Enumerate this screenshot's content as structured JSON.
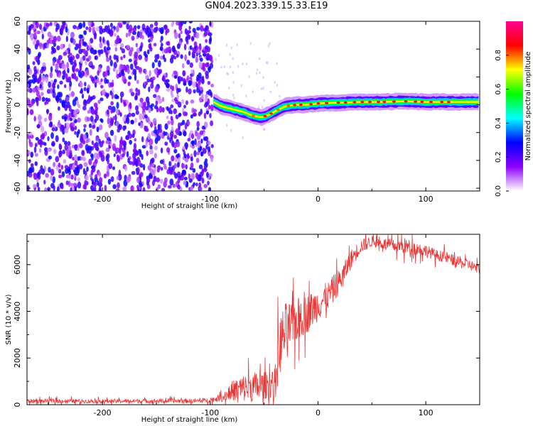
{
  "page_title": "GN04.2023.339.15.33.E19",
  "chart_data": [
    {
      "type": "heatmap",
      "title": "GN04.2023.339.15.33.E19",
      "xlabel": "Height of straight line (km)",
      "ylabel": "Frequency (Hz)",
      "xlim": [
        -270,
        150
      ],
      "ylim": [
        -62,
        60
      ],
      "x_ticks": [
        -200,
        -100,
        0,
        100
      ],
      "y_ticks": [
        -60,
        -40,
        -20,
        0,
        20,
        40,
        60
      ],
      "colorbar": {
        "label": "Normalized spectral amplitude",
        "range": [
          0,
          1
        ],
        "ticks": [
          "0.0",
          "0.2",
          "0.4",
          "0.6",
          "0.8"
        ],
        "colors": [
          "#ffffff",
          "#8f00ff",
          "#0000ff",
          "#00ffff",
          "#00ff00",
          "#ffff00",
          "#ff0000",
          "#ff0090"
        ]
      },
      "noise_region": {
        "x_range": [
          -270,
          -98
        ],
        "freq_range": [
          -62,
          60
        ],
        "amplitude": [
          0.05,
          0.3
        ]
      },
      "signal_ridge": {
        "x": [
          -97,
          -90,
          -80,
          -70,
          -60,
          -52,
          -45,
          -38,
          -30,
          -20,
          -10,
          0,
          20,
          40,
          60,
          80,
          100,
          120,
          150
        ],
        "freq": [
          2,
          -1,
          -3,
          -5,
          -8,
          -9,
          -7,
          -4,
          -1,
          0,
          0,
          1,
          1.5,
          2,
          2,
          2.5,
          2,
          2,
          2
        ],
        "peak_amplitude": [
          0.5,
          0.6,
          0.65,
          0.7,
          0.8,
          0.85,
          0.85,
          0.8,
          0.8,
          0.85,
          0.9,
          0.9,
          0.85,
          0.9,
          0.9,
          0.9,
          0.9,
          0.85,
          0.85
        ]
      }
    },
    {
      "type": "line",
      "xlabel": "Height of straight line (km)",
      "ylabel": "SNR (10 * v/v)",
      "xlim": [
        -270,
        150
      ],
      "ylim": [
        0,
        7300
      ],
      "x_ticks": [
        -200,
        -100,
        0,
        100
      ],
      "y_ticks": [
        0,
        2000,
        4000,
        6000
      ],
      "color": "#ee3333",
      "series": [
        {
          "x": [
            -270,
            -250,
            -200,
            -150,
            -110,
            -100,
            -95,
            -88,
            -80,
            -70,
            -60,
            -50,
            -45,
            -40,
            -38,
            -35,
            -30,
            -25,
            -20,
            -15,
            -10,
            -5,
            0,
            5,
            10,
            15,
            20,
            25,
            30,
            40,
            50,
            60,
            70,
            80,
            90,
            100,
            110,
            120,
            130,
            140,
            150
          ],
          "y": [
            150,
            160,
            150,
            160,
            160,
            200,
            250,
            300,
            600,
            700,
            750,
            800,
            900,
            850,
            1800,
            2600,
            3200,
            3400,
            3600,
            3800,
            3900,
            4100,
            4300,
            4500,
            4700,
            5000,
            5300,
            5700,
            6200,
            6800,
            7000,
            6900,
            6800,
            6800,
            6700,
            6600,
            6400,
            6300,
            6100,
            6000,
            5800
          ],
          "spread": [
            150,
            150,
            140,
            150,
            160,
            160,
            200,
            300,
            700,
            1000,
            1100,
            1000,
            1000,
            1200,
            2000,
            2200,
            2000,
            1700,
            1600,
            1500,
            1400,
            1300,
            1200,
            1100,
            1000,
            1000,
            900,
            800,
            700,
            500,
            400,
            400,
            450,
            600,
            500,
            450,
            400,
            400,
            400,
            400,
            350
          ]
        }
      ]
    }
  ]
}
